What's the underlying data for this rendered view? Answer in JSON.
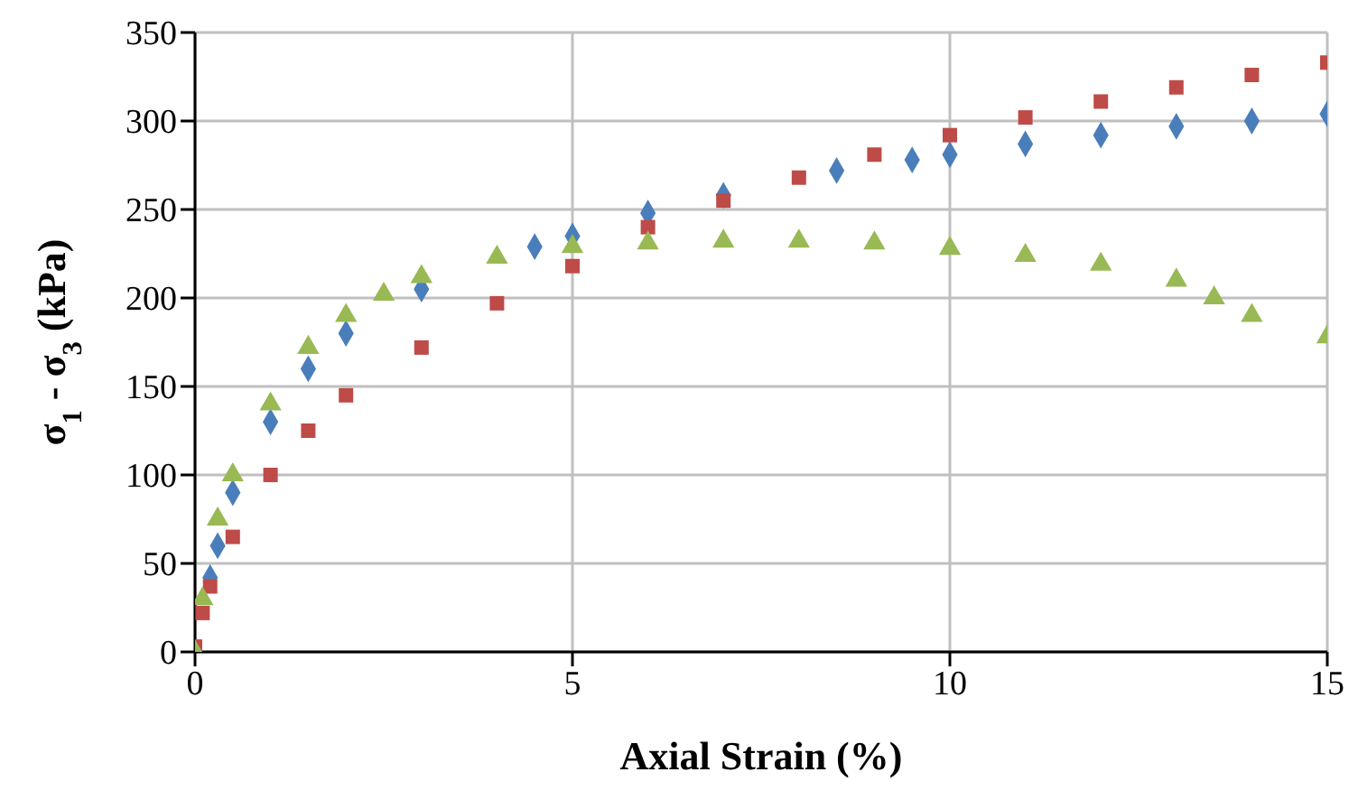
{
  "chart_data": {
    "type": "scatter",
    "xlabel": "Axial Strain (%)",
    "ylabel": "σ$_{1}$ - σ$_{3}$ (kPa)",
    "xlim": [
      0,
      15
    ],
    "xticks": [
      0,
      5,
      10,
      15
    ],
    "ylim": [
      0,
      350
    ],
    "yticks": [
      0,
      50,
      100,
      150,
      200,
      250,
      300,
      350
    ],
    "grid": true,
    "legend": false,
    "series": [
      {
        "color": "#4a7ebb",
        "marker": "diamond",
        "x": [
          0.2,
          0.3,
          0.5,
          1,
          1.5,
          2,
          3,
          4.5,
          5,
          6,
          7,
          8.5,
          9.5,
          10,
          11,
          12,
          13,
          14,
          15
        ],
        "values": [
          42,
          60,
          90,
          130,
          160,
          180,
          205,
          229,
          235,
          248,
          258,
          272,
          278,
          281,
          287,
          292,
          297,
          300,
          304
        ]
      },
      {
        "color": "#be4b48",
        "marker": "square",
        "x": [
          0,
          0.1,
          0.2,
          0.5,
          1,
          1.5,
          2,
          3,
          4,
          5,
          6,
          7,
          8,
          9,
          10,
          11,
          12,
          13,
          14,
          15
        ],
        "values": [
          3,
          22,
          37,
          65,
          100,
          125,
          145,
          172,
          197,
          218,
          240,
          255,
          268,
          281,
          292,
          302,
          311,
          319,
          326,
          333
        ]
      },
      {
        "color": "#98b954",
        "marker": "triangle",
        "x": [
          0,
          0.1,
          0.3,
          0.5,
          1,
          1.5,
          2,
          2.5,
          3,
          4,
          5,
          6,
          7,
          8,
          9,
          10,
          11,
          12,
          13,
          13.5,
          14,
          15
        ],
        "values": [
          0,
          30,
          75,
          100,
          140,
          172,
          190,
          202,
          212,
          223,
          229,
          231,
          232,
          232,
          231,
          228,
          224,
          219,
          210,
          200,
          190,
          178
        ]
      }
    ]
  }
}
